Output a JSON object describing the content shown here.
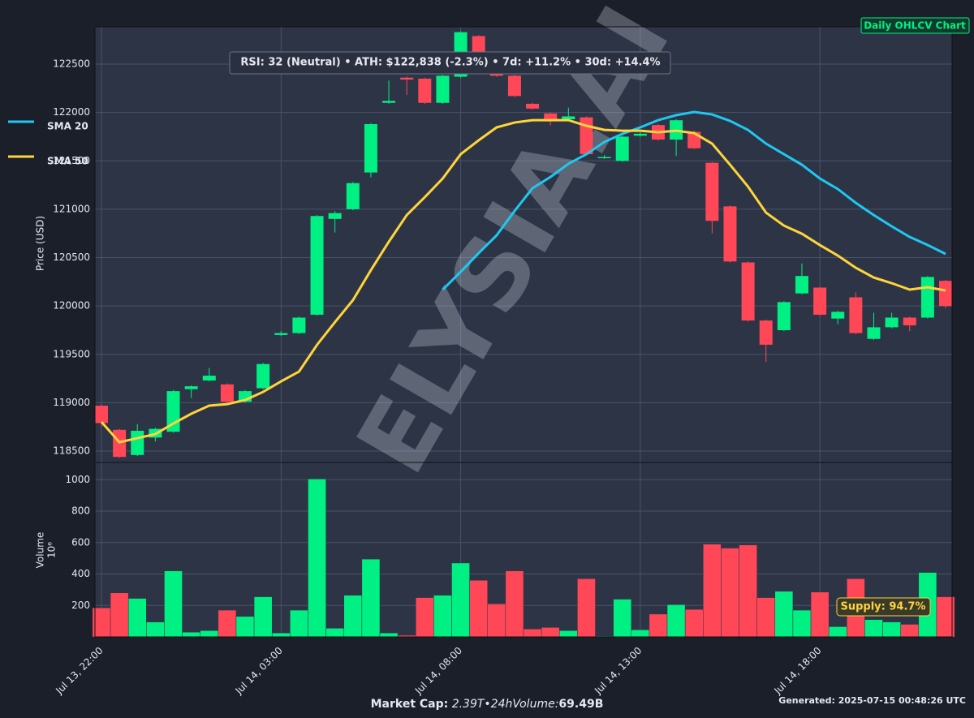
{
  "page_title": "Daily OHLCV Chart",
  "footer": {
    "label": "Market Cap:",
    "middle": "2.39T•24hVolume:",
    "value": "69.49B"
  },
  "generated": "Generated: 2025-07-15 00:48:26 UTC",
  "watermark": "ELYSIA.AI",
  "chart_data": [
    {
      "type": "candlestick",
      "ylabel": "Price (USD)",
      "annotation": "RSI: 32 (Neutral) • ATH: $122,838 (-2.3%) • 7d: +11.2% • 30d: +14.4%",
      "categories": [
        "Jul 13, 22:00",
        null,
        null,
        null,
        null,
        null,
        null,
        null,
        null,
        null,
        "Jul 14, 03:00",
        null,
        null,
        null,
        null,
        null,
        null,
        null,
        null,
        null,
        "Jul 14, 08:00",
        null,
        null,
        null,
        null,
        null,
        null,
        null,
        null,
        null,
        "Jul 14, 13:00",
        null,
        null,
        null,
        null,
        null,
        null,
        null,
        null,
        null,
        "Jul 14, 18:00",
        null,
        null,
        null,
        null,
        null,
        null,
        null
      ],
      "open": [
        118970,
        118720,
        118460,
        118640,
        118700,
        119140,
        119230,
        119190,
        119010,
        119150,
        119700,
        119720,
        119910,
        120900,
        121000,
        121380,
        122100,
        122360,
        122350,
        122100,
        122370,
        122790,
        122470,
        122380,
        122090,
        121990,
        121930,
        121950,
        121530,
        121500,
        121760,
        121870,
        121720,
        121800,
        121480,
        121030,
        120450,
        119850,
        119750,
        120130,
        120190,
        119870,
        120090,
        119660,
        119780,
        119880,
        119880,
        120260
      ],
      "high": [
        118980,
        118730,
        118780,
        118740,
        119130,
        119180,
        119360,
        119200,
        119130,
        119410,
        119740,
        119890,
        120940,
        120980,
        121280,
        121890,
        122330,
        122370,
        122360,
        122390,
        122840,
        122800,
        122480,
        122390,
        122100,
        122000,
        122050,
        121960,
        121560,
        121760,
        121790,
        121880,
        121930,
        121810,
        121490,
        121040,
        120460,
        119860,
        120050,
        120440,
        120200,
        119950,
        120140,
        119930,
        119930,
        119890,
        120310,
        120270
      ],
      "low": [
        118750,
        118430,
        118450,
        118600,
        118690,
        119050,
        119220,
        119000,
        119000,
        119140,
        119690,
        119710,
        119900,
        120760,
        120990,
        121330,
        122090,
        122180,
        122090,
        122090,
        122360,
        122400,
        122370,
        122160,
        122030,
        121870,
        121920,
        121560,
        121520,
        121490,
        121750,
        121710,
        121550,
        121620,
        120750,
        120450,
        119840,
        119420,
        119740,
        120120,
        119900,
        119810,
        119710,
        119650,
        119770,
        119740,
        119870,
        119980
      ],
      "close": [
        118790,
        118440,
        118710,
        118730,
        119120,
        119170,
        119280,
        119010,
        119120,
        119400,
        119720,
        119880,
        120930,
        120960,
        121270,
        121880,
        122120,
        122340,
        122100,
        122380,
        122830,
        122410,
        122380,
        122170,
        122040,
        121930,
        121960,
        121570,
        121540,
        121750,
        121780,
        121720,
        121920,
        121630,
        120880,
        120460,
        119850,
        119600,
        120040,
        120310,
        119910,
        119940,
        119720,
        119780,
        119880,
        119800,
        120300,
        120000
      ],
      "up_color": "#00f083",
      "down_color": "#ff4757",
      "ylim": [
        118383,
        122886
      ],
      "yticks": [
        118500,
        119000,
        119500,
        120000,
        120500,
        121000,
        121500,
        122000,
        122500
      ],
      "grid": true,
      "lines": [
        {
          "name": "SMA 20",
          "color": "#1ec8f0",
          "values": [
            null,
            null,
            null,
            null,
            null,
            null,
            null,
            null,
            null,
            null,
            null,
            null,
            null,
            null,
            null,
            null,
            null,
            null,
            null,
            120169,
            120353,
            120546,
            120730,
            120982,
            121217,
            121334,
            121470,
            121569,
            121695,
            121779,
            121846,
            121921,
            121972,
            122005,
            121980,
            121913,
            121820,
            121678,
            121569,
            121460,
            121318,
            121209,
            121066,
            120940,
            120823,
            120714,
            120630,
            120538
          ]
        },
        {
          "name": "SMA 50",
          "color": "#ffd43b",
          "values": [
            118802,
            118592,
            118634,
            118676,
            118785,
            118886,
            118970,
            118986,
            119028,
            119112,
            119221,
            119322,
            119598,
            119833,
            120060,
            120370,
            120664,
            120940,
            121125,
            121318,
            121569,
            121712,
            121846,
            121896,
            121921,
            121921,
            121921,
            121863,
            121820,
            121812,
            121812,
            121796,
            121812,
            121787,
            121678,
            121460,
            121234,
            120965,
            120831,
            120747,
            120630,
            120521,
            120395,
            120294,
            120236,
            120169,
            120194,
            120160
          ]
        }
      ]
    },
    {
      "type": "bar",
      "ylabel": "Volume",
      "scale_label": "10⁶",
      "annotation": "Supply: 94.7%",
      "values": [
        185,
        280,
        245,
        95,
        420,
        30,
        40,
        170,
        130,
        255,
        25,
        170,
        1005,
        55,
        265,
        495,
        25,
        10,
        250,
        265,
        470,
        360,
        210,
        420,
        50,
        60,
        40,
        370,
        5,
        240,
        45,
        145,
        205,
        175,
        590,
        565,
        585,
        250,
        290,
        170,
        285,
        65,
        370,
        110,
        95,
        80,
        410,
        255
      ],
      "ylim": [
        0,
        1110
      ],
      "yticks": [
        200,
        400,
        600,
        800,
        1000
      ],
      "grid": true
    }
  ]
}
